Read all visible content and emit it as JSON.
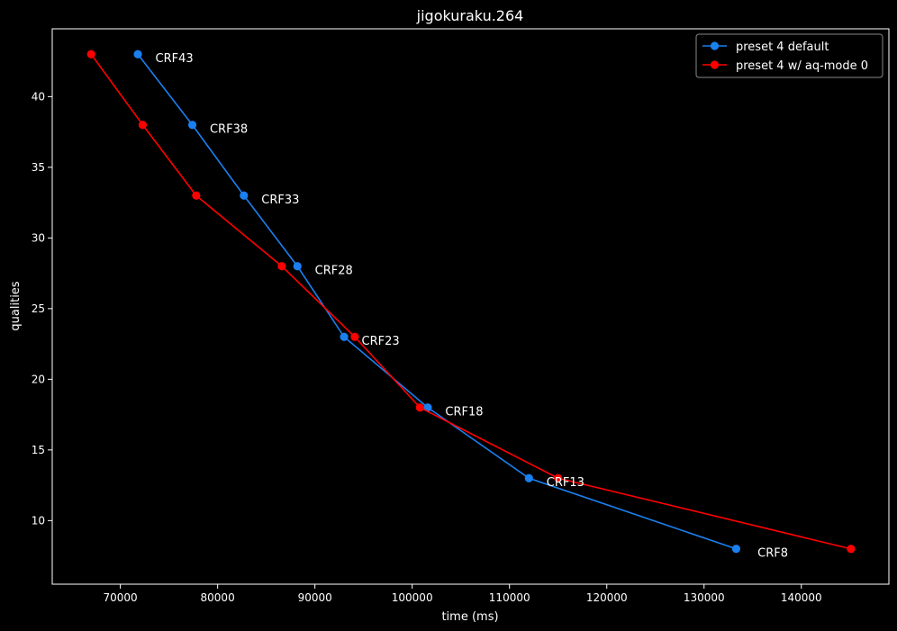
{
  "chart_data": {
    "type": "line",
    "title": "jigokuraku.264",
    "xlabel": "time (ms)",
    "ylabel": "qualities",
    "xlim": [
      63000,
      149000
    ],
    "ylim": [
      5.5,
      44.8
    ],
    "xticks": [
      70000,
      80000,
      90000,
      100000,
      110000,
      120000,
      130000,
      140000
    ],
    "xtick_labels": [
      "70000",
      "80000",
      "90000",
      "100000",
      "110000",
      "120000",
      "130000",
      "140000"
    ],
    "yticks": [
      10,
      15,
      20,
      25,
      30,
      35,
      40
    ],
    "ytick_labels": [
      "10",
      "15",
      "20",
      "25",
      "30",
      "35",
      "40"
    ],
    "grid": false,
    "legend_position": "top-right",
    "series": [
      {
        "name": "preset 4 default",
        "color": "#1a80f0",
        "x": [
          71800,
          77400,
          82700,
          88200,
          93000,
          101600,
          112000,
          133300
        ],
        "y": [
          43,
          38,
          33,
          28,
          23,
          18,
          13,
          8
        ]
      },
      {
        "name": "preset 4 w/ aq-mode 0",
        "color": "#ff0000",
        "x": [
          67000,
          72300,
          77800,
          86600,
          94100,
          100800,
          115000,
          145100
        ],
        "y": [
          43,
          38,
          33,
          28,
          23,
          18,
          13,
          8
        ]
      }
    ],
    "annotations": [
      {
        "text": "CRF43",
        "x": 73600,
        "y": 42.7
      },
      {
        "text": "CRF38",
        "x": 79200,
        "y": 37.7
      },
      {
        "text": "CRF33",
        "x": 84500,
        "y": 32.7
      },
      {
        "text": "CRF28",
        "x": 90000,
        "y": 27.7
      },
      {
        "text": "CRF23",
        "x": 94800,
        "y": 22.7
      },
      {
        "text": "CRF18",
        "x": 103400,
        "y": 17.7
      },
      {
        "text": "CRF13",
        "x": 113800,
        "y": 12.7
      },
      {
        "text": "CRF8",
        "x": 135500,
        "y": 7.7
      }
    ]
  }
}
